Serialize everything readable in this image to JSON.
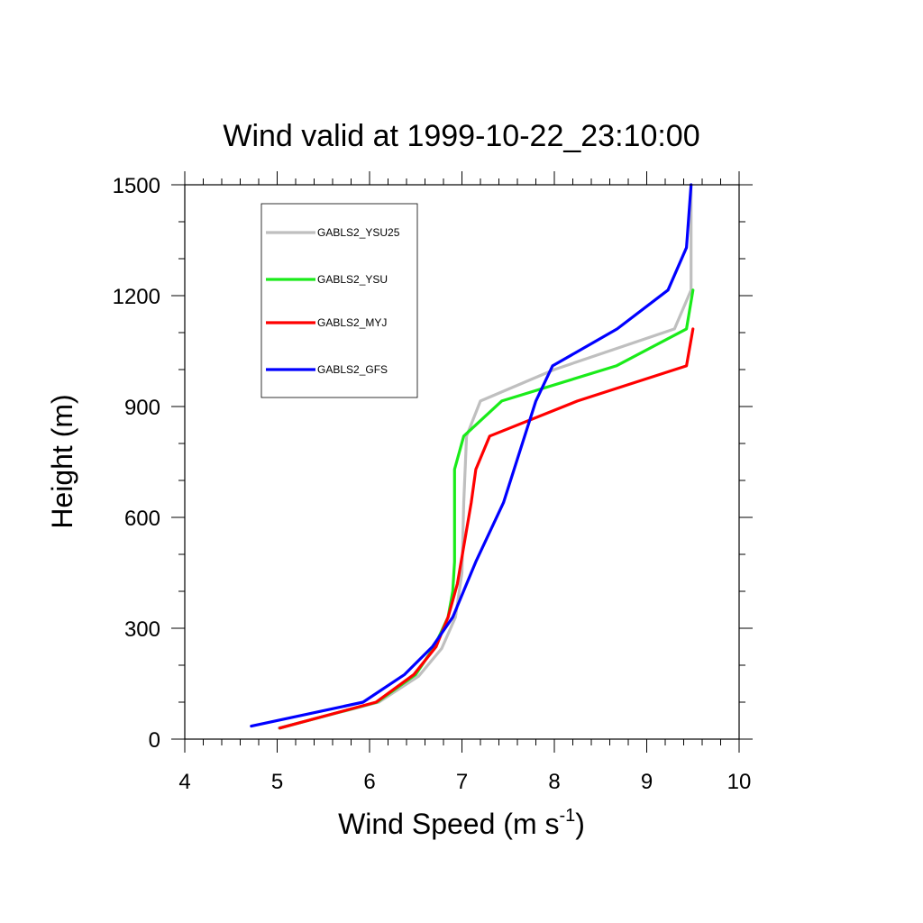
{
  "chart_data": {
    "type": "line",
    "title": "Wind valid at 1999-10-22_23:10:00",
    "xlabel_main": "Wind Speed (m s",
    "xlabel_sup": "-1",
    "xlabel_tail": ")",
    "ylabel": "Height (m)",
    "xlim": [
      4,
      10
    ],
    "ylim": [
      0,
      1500
    ],
    "x_ticks": [
      4,
      5,
      6,
      7,
      8,
      9,
      10
    ],
    "x_tick_labels": [
      "4",
      "5",
      "6",
      "7",
      "8",
      "9",
      "10"
    ],
    "y_ticks": [
      0,
      300,
      600,
      900,
      1200,
      1500
    ],
    "y_tick_labels": [
      "0",
      "300",
      "600",
      "900",
      "1200",
      "1500"
    ],
    "x_minor_step": 0.2,
    "y_minor_step": 100,
    "grid": false,
    "legend_position": "top-left",
    "series": [
      {
        "name": "GABLS2_YSU25",
        "color": "#bfbfbf",
        "x": [
          5.02,
          6.1,
          6.53,
          6.78,
          6.93,
          7.0,
          7.02,
          7.05,
          7.2,
          8.0,
          9.3,
          9.48,
          9.48
        ],
        "y": [
          30,
          100,
          170,
          245,
          330,
          450,
          640,
          820,
          915,
          1000,
          1110,
          1215,
          1500
        ]
      },
      {
        "name": "GABLS2_YSU",
        "color": "#1aeb1a",
        "x": [
          5.03,
          6.08,
          6.5,
          6.7,
          6.85,
          6.9,
          6.92,
          6.92,
          7.02,
          7.43,
          8.67,
          9.43,
          9.5
        ],
        "y": [
          30,
          100,
          175,
          250,
          330,
          400,
          480,
          730,
          820,
          915,
          1010,
          1110,
          1215
        ]
      },
      {
        "name": "GABLS2_MYJ",
        "color": "#ff0000",
        "x": [
          5.03,
          6.07,
          6.48,
          6.72,
          6.85,
          6.95,
          7.1,
          7.15,
          7.3,
          8.25,
          9.43,
          9.5
        ],
        "y": [
          30,
          100,
          175,
          250,
          330,
          420,
          640,
          730,
          820,
          915,
          1010,
          1110
        ]
      },
      {
        "name": "GABLS2_GFS",
        "color": "#0000ff",
        "x": [
          4.72,
          5.93,
          6.38,
          6.68,
          6.9,
          7.15,
          7.45,
          7.8,
          7.98,
          8.68,
          9.23,
          9.43,
          9.48
        ],
        "y": [
          35,
          100,
          175,
          250,
          330,
          480,
          640,
          915,
          1010,
          1110,
          1215,
          1330,
          1500
        ]
      }
    ]
  }
}
